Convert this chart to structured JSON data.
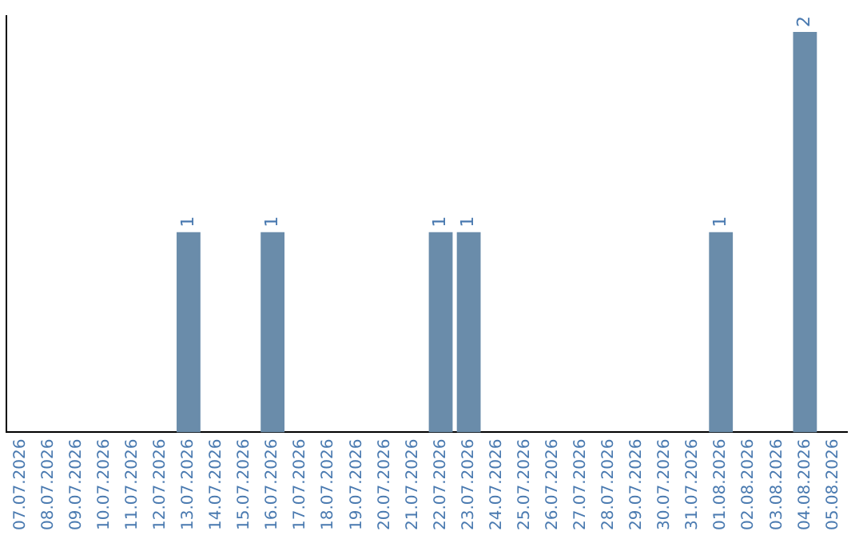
{
  "chart_data": {
    "type": "bar",
    "categories": [
      "07.07.2026",
      "08.07.2026",
      "09.07.2026",
      "10.07.2026",
      "11.07.2026",
      "12.07.2026",
      "13.07.2026",
      "14.07.2026",
      "15.07.2026",
      "16.07.2026",
      "17.07.2026",
      "18.07.2026",
      "19.07.2026",
      "20.07.2026",
      "21.07.2026",
      "22.07.2026",
      "23.07.2026",
      "24.07.2026",
      "25.07.2026",
      "26.07.2026",
      "27.07.2026",
      "28.07.2026",
      "29.07.2026",
      "30.07.2026",
      "31.07.2026",
      "01.08.2026",
      "02.08.2026",
      "03.08.2026",
      "04.08.2026",
      "05.08.2026"
    ],
    "values": [
      0,
      0,
      0,
      0,
      0,
      0,
      1,
      0,
      0,
      1,
      0,
      0,
      0,
      0,
      0,
      1,
      1,
      0,
      0,
      0,
      0,
      0,
      0,
      0,
      0,
      1,
      0,
      0,
      2,
      0
    ],
    "value_labels": [
      null,
      null,
      null,
      null,
      null,
      null,
      "1",
      null,
      null,
      "1",
      null,
      null,
      null,
      null,
      null,
      "1",
      "1",
      null,
      null,
      null,
      null,
      null,
      null,
      null,
      null,
      "1",
      null,
      null,
      "2",
      null
    ],
    "color": "#6a8caa",
    "ylim": [
      0,
      2.08
    ],
    "tick_labels": "x",
    "grid": false,
    "legend": false
  }
}
